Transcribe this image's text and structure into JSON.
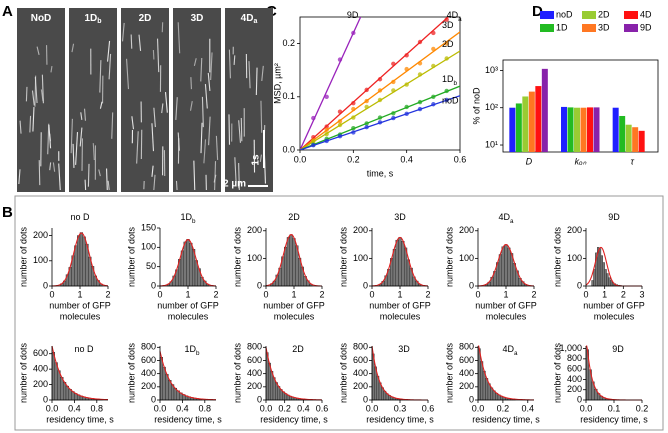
{
  "panel_labels": [
    "A",
    "B",
    "C",
    "D"
  ],
  "kymographs": {
    "labels": [
      {
        "text": "NoD"
      },
      {
        "text": "1D",
        "sub": "b"
      },
      {
        "text": "2D"
      },
      {
        "text": "3D"
      },
      {
        "text": "4D",
        "sub": "a"
      }
    ],
    "time_scale": "1s",
    "length_scale": "2 µm"
  },
  "chart_data": [
    {
      "type": "line",
      "xlabel": "time, s",
      "ylabel": "MSD, µm²",
      "x": [
        0.05,
        0.1,
        0.15,
        0.2,
        0.25,
        0.3,
        0.35,
        0.4,
        0.45,
        0.5,
        0.55
      ],
      "xlim": [
        0,
        0.6
      ],
      "xticks": [
        {
          "value": 0,
          "label": "0.0"
        },
        0.2,
        0.4,
        0.6
      ],
      "ylim": [
        0,
        0.25
      ],
      "yticks": [
        {
          "value": 0,
          "label": "0.0"
        },
        0.1,
        0.2
      ],
      "series": [
        {
          "name": "9D",
          "color": "#9922bb",
          "fit_slope": 1.1,
          "values": [
            0.06,
            0.1,
            0.17,
            0.22,
            null,
            null,
            null,
            null,
            null,
            null,
            null
          ]
        },
        {
          "name": "4D",
          "name_sub": "a",
          "color": "#ee2222",
          "fit_slope": 0.45,
          "values": [
            0.024,
            0.044,
            0.072,
            0.088,
            0.113,
            0.133,
            0.162,
            0.178,
            0.203,
            0.22,
            0.245
          ]
        },
        {
          "name": "3D",
          "color": "#ff8800",
          "fit_slope": 0.37,
          "values": [
            0.018,
            0.038,
            0.054,
            0.077,
            0.092,
            0.112,
            0.128,
            0.152,
            0.163,
            0.19,
            0.2
          ]
        },
        {
          "name": "2D",
          "color": "#bbbb00",
          "fit_slope": 0.31,
          "values": [
            0.016,
            0.03,
            0.047,
            0.061,
            0.081,
            0.094,
            0.112,
            0.123,
            0.142,
            0.158,
            0.172
          ]
        },
        {
          "name": "1D",
          "name_sub": "b",
          "color": "#22aa22",
          "fit_slope": 0.2,
          "values": [
            0.01,
            0.021,
            0.029,
            0.041,
            0.05,
            0.061,
            0.069,
            0.081,
            0.09,
            0.1,
            0.111
          ]
        },
        {
          "name": "noD",
          "color": "#2233dd",
          "fit_slope": 0.17,
          "values": [
            0.009,
            0.017,
            0.026,
            0.033,
            0.043,
            0.052,
            0.06,
            0.068,
            0.077,
            0.086,
            0.094
          ]
        }
      ]
    },
    {
      "type": "bar",
      "log_scale": true,
      "ylabel": "% of noD",
      "legend": "top",
      "categories": [
        "D",
        "kₒₙ",
        "τ"
      ],
      "ylim": [
        6.5,
        1900
      ],
      "yticks": [
        {
          "value": 10,
          "label": "10¹"
        },
        {
          "value": 100,
          "label": "10²"
        },
        {
          "value": 1000,
          "label": "10³"
        }
      ],
      "series": [
        {
          "name": "noD",
          "color": "#1f1fff",
          "values": [
            100,
            105,
            100
          ]
        },
        {
          "name": "1D",
          "color": "#22bb22",
          "values": [
            130,
            102,
            60
          ]
        },
        {
          "name": "2D",
          "color": "#99cc33",
          "values": [
            200,
            100,
            35
          ]
        },
        {
          "name": "3D",
          "color": "#ff7722",
          "values": [
            270,
            100,
            30
          ]
        },
        {
          "name": "4D",
          "color": "#ff1111",
          "values": [
            380,
            102,
            24
          ]
        },
        {
          "name": "9D",
          "color": "#8822aa",
          "values": [
            1100,
            102,
            5
          ]
        }
      ]
    },
    {
      "type": "histogram",
      "title": "no D",
      "ylabel": "number of dots",
      "xlabel": [
        "number of GFP",
        "molecules"
      ],
      "xlim": [
        0,
        2
      ],
      "xticks": [
        0,
        1,
        2
      ],
      "ylim": [
        0,
        230
      ],
      "yticks": [
        0,
        100,
        200
      ],
      "bins": [
        0.3,
        0.4,
        0.5,
        0.6,
        0.7,
        0.8,
        0.9,
        1,
        1.1,
        1.2,
        1.3,
        1.4,
        1.5,
        1.6,
        1.7,
        1.8
      ],
      "values": [
        9,
        20,
        45,
        74,
        120,
        160,
        200,
        212,
        195,
        166,
        115,
        78,
        40,
        22,
        8
      ],
      "fit": {
        "peak": 210,
        "mean": 1.05,
        "sd": 0.28
      }
    },
    {
      "type": "histogram",
      "title": "1D",
      "title_sub": "b",
      "ylabel": "number of dots",
      "xlabel": [
        "number of GFP",
        "molecules"
      ],
      "xlim": [
        0,
        2
      ],
      "xticks": [
        0,
        1,
        2
      ],
      "ylim": [
        0,
        150
      ],
      "yticks": [
        0,
        50,
        100,
        150
      ],
      "bins": [
        0.25,
        0.35,
        0.45,
        0.55,
        0.65,
        0.75,
        0.85,
        0.95,
        1.05,
        1.15,
        1.25,
        1.35,
        1.45,
        1.55,
        1.65,
        1.75
      ],
      "values": [
        5,
        11,
        26,
        42,
        69,
        91,
        114,
        121,
        111,
        95,
        66,
        45,
        23,
        13,
        5
      ],
      "fit": {
        "peak": 120,
        "mean": 1,
        "sd": 0.28
      }
    },
    {
      "type": "histogram",
      "title": "2D",
      "ylabel": "number of dots",
      "xlabel": [
        "number of GFP",
        "molecules"
      ],
      "xlim": [
        0,
        2
      ],
      "xticks": [
        0,
        1,
        2
      ],
      "ylim": [
        0,
        210
      ],
      "yticks": [
        0,
        100,
        200
      ],
      "bins": [
        0.15,
        0.25,
        0.35,
        0.45,
        0.55,
        0.65,
        0.75,
        0.85,
        0.95,
        1.05,
        1.15,
        1.25,
        1.35,
        1.45,
        1.55,
        1.65
      ],
      "values": [
        8,
        18,
        40,
        65,
        106,
        141,
        176,
        186,
        172,
        146,
        101,
        69,
        35,
        19,
        7
      ],
      "fit": {
        "peak": 186,
        "mean": 0.9,
        "sd": 0.28
      }
    },
    {
      "type": "histogram",
      "title": "3D",
      "ylabel": "number of dots",
      "xlabel": [
        "number of GFP",
        "molecules"
      ],
      "xlim": [
        0,
        2
      ],
      "xticks": [
        0,
        1,
        2
      ],
      "ylim": [
        0,
        210
      ],
      "yticks": [
        0,
        100,
        200
      ],
      "bins": [
        0.25,
        0.35,
        0.45,
        0.55,
        0.65,
        0.75,
        0.85,
        0.95,
        1.05,
        1.15,
        1.25,
        1.35,
        1.45,
        1.55,
        1.65,
        1.75
      ],
      "values": [
        7,
        17,
        37,
        61,
        100,
        133,
        166,
        176,
        162,
        138,
        95,
        65,
        33,
        18,
        7
      ],
      "fit": {
        "peak": 176,
        "mean": 1,
        "sd": 0.28
      }
    },
    {
      "type": "histogram",
      "title": "4D",
      "title_sub": "a",
      "ylabel": "number of dots",
      "xlabel": [
        "number of GFP",
        "molecules"
      ],
      "xlim": [
        0,
        2
      ],
      "xticks": [
        0,
        1,
        2
      ],
      "ylim": [
        0,
        210
      ],
      "yticks": [
        0,
        100,
        200
      ],
      "bins": [
        0.25,
        0.35,
        0.45,
        0.55,
        0.65,
        0.75,
        0.85,
        0.95,
        1.05,
        1.15,
        1.25,
        1.35,
        1.45,
        1.55,
        1.65,
        1.75
      ],
      "values": [
        6,
        14,
        32,
        53,
        85,
        114,
        142,
        150,
        138,
        118,
        82,
        55,
        28,
        16,
        6
      ],
      "fit": {
        "peak": 150,
        "mean": 1,
        "sd": 0.28
      }
    },
    {
      "type": "histogram",
      "title": "9D",
      "ylabel": "number of dots",
      "xlabel": [
        "number of GFP",
        "molecules"
      ],
      "xlim": [
        0,
        3
      ],
      "xticks": [
        0,
        1,
        2,
        3
      ],
      "ylim": [
        0,
        210
      ],
      "yticks": [
        0,
        100,
        200
      ],
      "bins": [
        0.3,
        0.4,
        0.5,
        0.6,
        0.7,
        0.8,
        0.9,
        1,
        1.1,
        1.2,
        1.3,
        1.4,
        1.5,
        1.6,
        1.7,
        1.8,
        1.9,
        2,
        2.1,
        2.2,
        2.3,
        2.4,
        2.5
      ],
      "values": [
        20,
        60,
        120,
        140,
        135,
        110,
        85,
        60,
        45,
        30,
        20,
        12,
        8,
        5,
        3,
        2,
        1,
        1,
        1,
        1,
        0,
        1
      ],
      "fit": {
        "peak": 140,
        "mean": 0.8,
        "sd": 0.3
      }
    },
    {
      "type": "histogram",
      "title": "no D",
      "ylabel": "number of dots",
      "xlabel": [
        "residency time, s"
      ],
      "xlim": [
        0,
        1
      ],
      "xticks": [
        {
          "value": 0,
          "label": "0.0"
        },
        0.4,
        0.8
      ],
      "ylim": [
        0,
        700
      ],
      "yticks": [
        0,
        200,
        400,
        600
      ],
      "bins": [
        0,
        0.05,
        0.1,
        0.15,
        0.2,
        0.25,
        0.3,
        0.35,
        0.4,
        0.45,
        0.5,
        0.55,
        0.6,
        0.65,
        0.7,
        0.75,
        0.8,
        0.85,
        0.9
      ],
      "values": [
        620,
        485,
        380,
        295,
        230,
        180,
        140,
        110,
        85,
        67,
        52,
        40,
        32,
        25,
        19,
        15,
        12,
        9
      ],
      "fit": {
        "amplitude": 702,
        "tau": 0.2
      }
    },
    {
      "type": "histogram",
      "title": "1D",
      "title_sub": "b",
      "ylabel": "number of dots",
      "xlabel": [
        "residency time, s"
      ],
      "xlim": [
        0,
        1
      ],
      "xticks": [
        {
          "value": 0,
          "label": "0.0"
        },
        0.4,
        0.8
      ],
      "ylim": [
        0,
        820
      ],
      "yticks": [
        0,
        200,
        400,
        600,
        800
      ],
      "bins": [
        0,
        0.05,
        0.1,
        0.15,
        0.2,
        0.25,
        0.3,
        0.35,
        0.4,
        0.45,
        0.5,
        0.55,
        0.6,
        0.65,
        0.7,
        0.75
      ],
      "values": [
        650,
        500,
        390,
        300,
        235,
        180,
        140,
        108,
        84,
        65,
        50,
        38,
        30,
        23,
        18
      ],
      "fit": {
        "amplitude": 741,
        "tau": 0.19
      }
    },
    {
      "type": "histogram",
      "title": "2D",
      "ylabel": "number of dots",
      "xlabel": [
        "residency time, s"
      ],
      "xlim": [
        0,
        0.6
      ],
      "xticks": [
        {
          "value": 0,
          "label": "0.0"
        },
        0.2,
        0.4,
        0.6
      ],
      "ylim": [
        0,
        820
      ],
      "yticks": [
        0,
        200,
        400,
        600,
        800
      ],
      "bins": [
        0,
        0.025,
        0.05,
        0.075,
        0.1,
        0.125,
        0.15,
        0.175,
        0.2,
        0.225,
        0.25,
        0.275,
        0.3,
        0.325,
        0.35,
        0.375,
        0.4,
        0.425,
        0.45,
        0.475,
        0.5
      ],
      "values": [
        720,
        561,
        437,
        341,
        266,
        207,
        161,
        126,
        98,
        76,
        59,
        46,
        36,
        28,
        22,
        17,
        13,
        10,
        8,
        6
      ],
      "fit": {
        "amplitude": 800,
        "tau": 0.1
      }
    },
    {
      "type": "histogram",
      "title": "3D",
      "ylabel": "number of dots",
      "xlabel": [
        "residency time, s"
      ],
      "xlim": [
        0,
        0.6
      ],
      "xticks": [
        {
          "value": 0,
          "label": "0.0"
        },
        0.3,
        0.6
      ],
      "ylim": [
        0,
        820
      ],
      "yticks": [
        0,
        200,
        400,
        600,
        800
      ],
      "bins": [
        0,
        0.025,
        0.05,
        0.075,
        0.1,
        0.125,
        0.15,
        0.175,
        0.2,
        0.225,
        0.25,
        0.275,
        0.3,
        0.325,
        0.35,
        0.375,
        0.4
      ],
      "values": [
        700,
        504,
        363,
        261,
        188,
        135,
        97,
        70,
        50,
        36,
        26,
        19,
        14,
        10,
        7,
        5
      ],
      "fit": {
        "amplitude": 826,
        "tau": 0.076
      }
    },
    {
      "type": "histogram",
      "title": "4D",
      "title_sub": "a",
      "ylabel": "number of dots",
      "xlabel": [
        "residency time, s"
      ],
      "xlim": [
        0,
        0.45
      ],
      "xticks": [
        {
          "value": 0,
          "label": "0.0"
        },
        0.2,
        0.4
      ],
      "ylim": [
        0,
        820
      ],
      "yticks": [
        0,
        200,
        400,
        600,
        800
      ],
      "bins": [
        0,
        0.02,
        0.04,
        0.06,
        0.08,
        0.1,
        0.12,
        0.14,
        0.16,
        0.18,
        0.2,
        0.22,
        0.24,
        0.26,
        0.28,
        0.3
      ],
      "values": [
        780,
        585,
        439,
        329,
        247,
        185,
        139,
        104,
        78,
        59,
        44,
        33,
        25,
        19,
        14
      ],
      "fit": {
        "amplitude": 900,
        "tau": 0.0695
      }
    },
    {
      "type": "histogram",
      "title": "9D",
      "ylabel": "number of dots",
      "xlabel": [
        "residency time, s"
      ],
      "xlim": [
        0,
        0.2
      ],
      "xticks": [
        {
          "value": 0,
          "label": "0.0"
        },
        0.1,
        0.2
      ],
      "ylim": [
        0,
        1050
      ],
      "yticks": [
        0,
        200,
        400,
        600,
        800,
        {
          "value": 1000,
          "label": "1,000"
        }
      ],
      "bins": [
        0,
        0.01,
        0.02,
        0.03,
        0.04,
        0.05,
        0.06,
        0.07,
        0.08,
        0.09,
        0.1,
        0.11,
        0.12
      ],
      "values": [
        980,
        588,
        353,
        212,
        127,
        76,
        46,
        27,
        16,
        10,
        6,
        4
      ],
      "fit": {
        "amplitude": 1265,
        "tau": 0.0196
      }
    }
  ]
}
